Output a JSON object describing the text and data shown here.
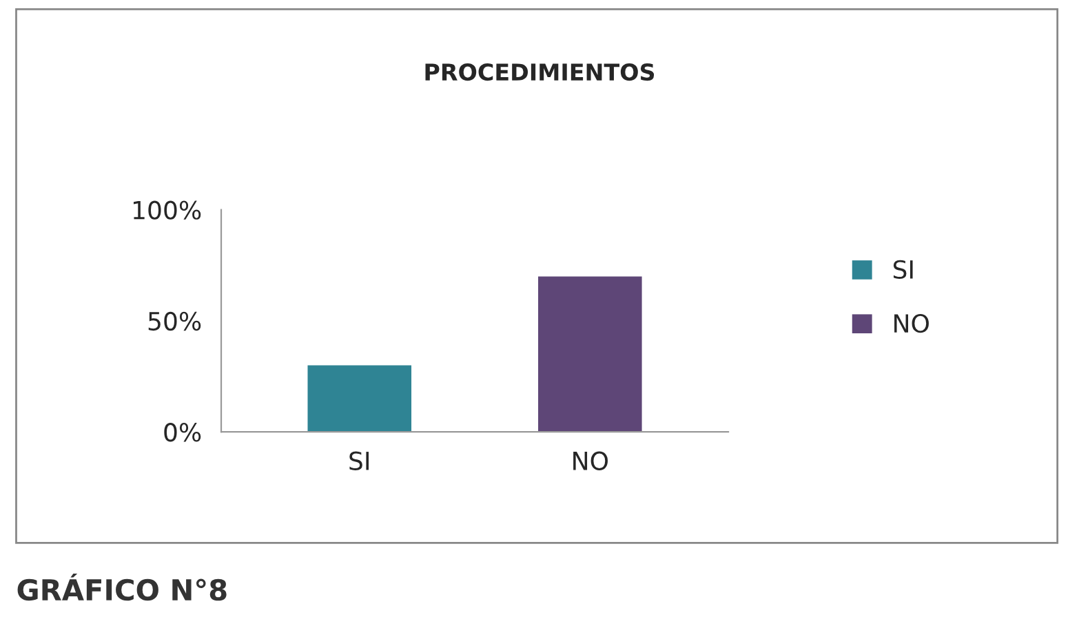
{
  "chart_data": {
    "type": "bar",
    "title": "PROCEDIMIENTOS",
    "categories": [
      "SI",
      "NO"
    ],
    "series": [
      {
        "name": "SI",
        "color": "#2f8494",
        "values": [
          30,
          null
        ]
      },
      {
        "name": "NO",
        "color": "#5e4677",
        "values": [
          null,
          70
        ]
      }
    ],
    "ylim": [
      0,
      100
    ],
    "yticks": [
      {
        "value": 0,
        "label": "0%"
      },
      {
        "value": 50,
        "label": "50%"
      },
      {
        "value": 100,
        "label": "100%"
      }
    ],
    "grid": false,
    "legend": "right",
    "annotations": [
      "GRÁFICO N°8"
    ]
  }
}
